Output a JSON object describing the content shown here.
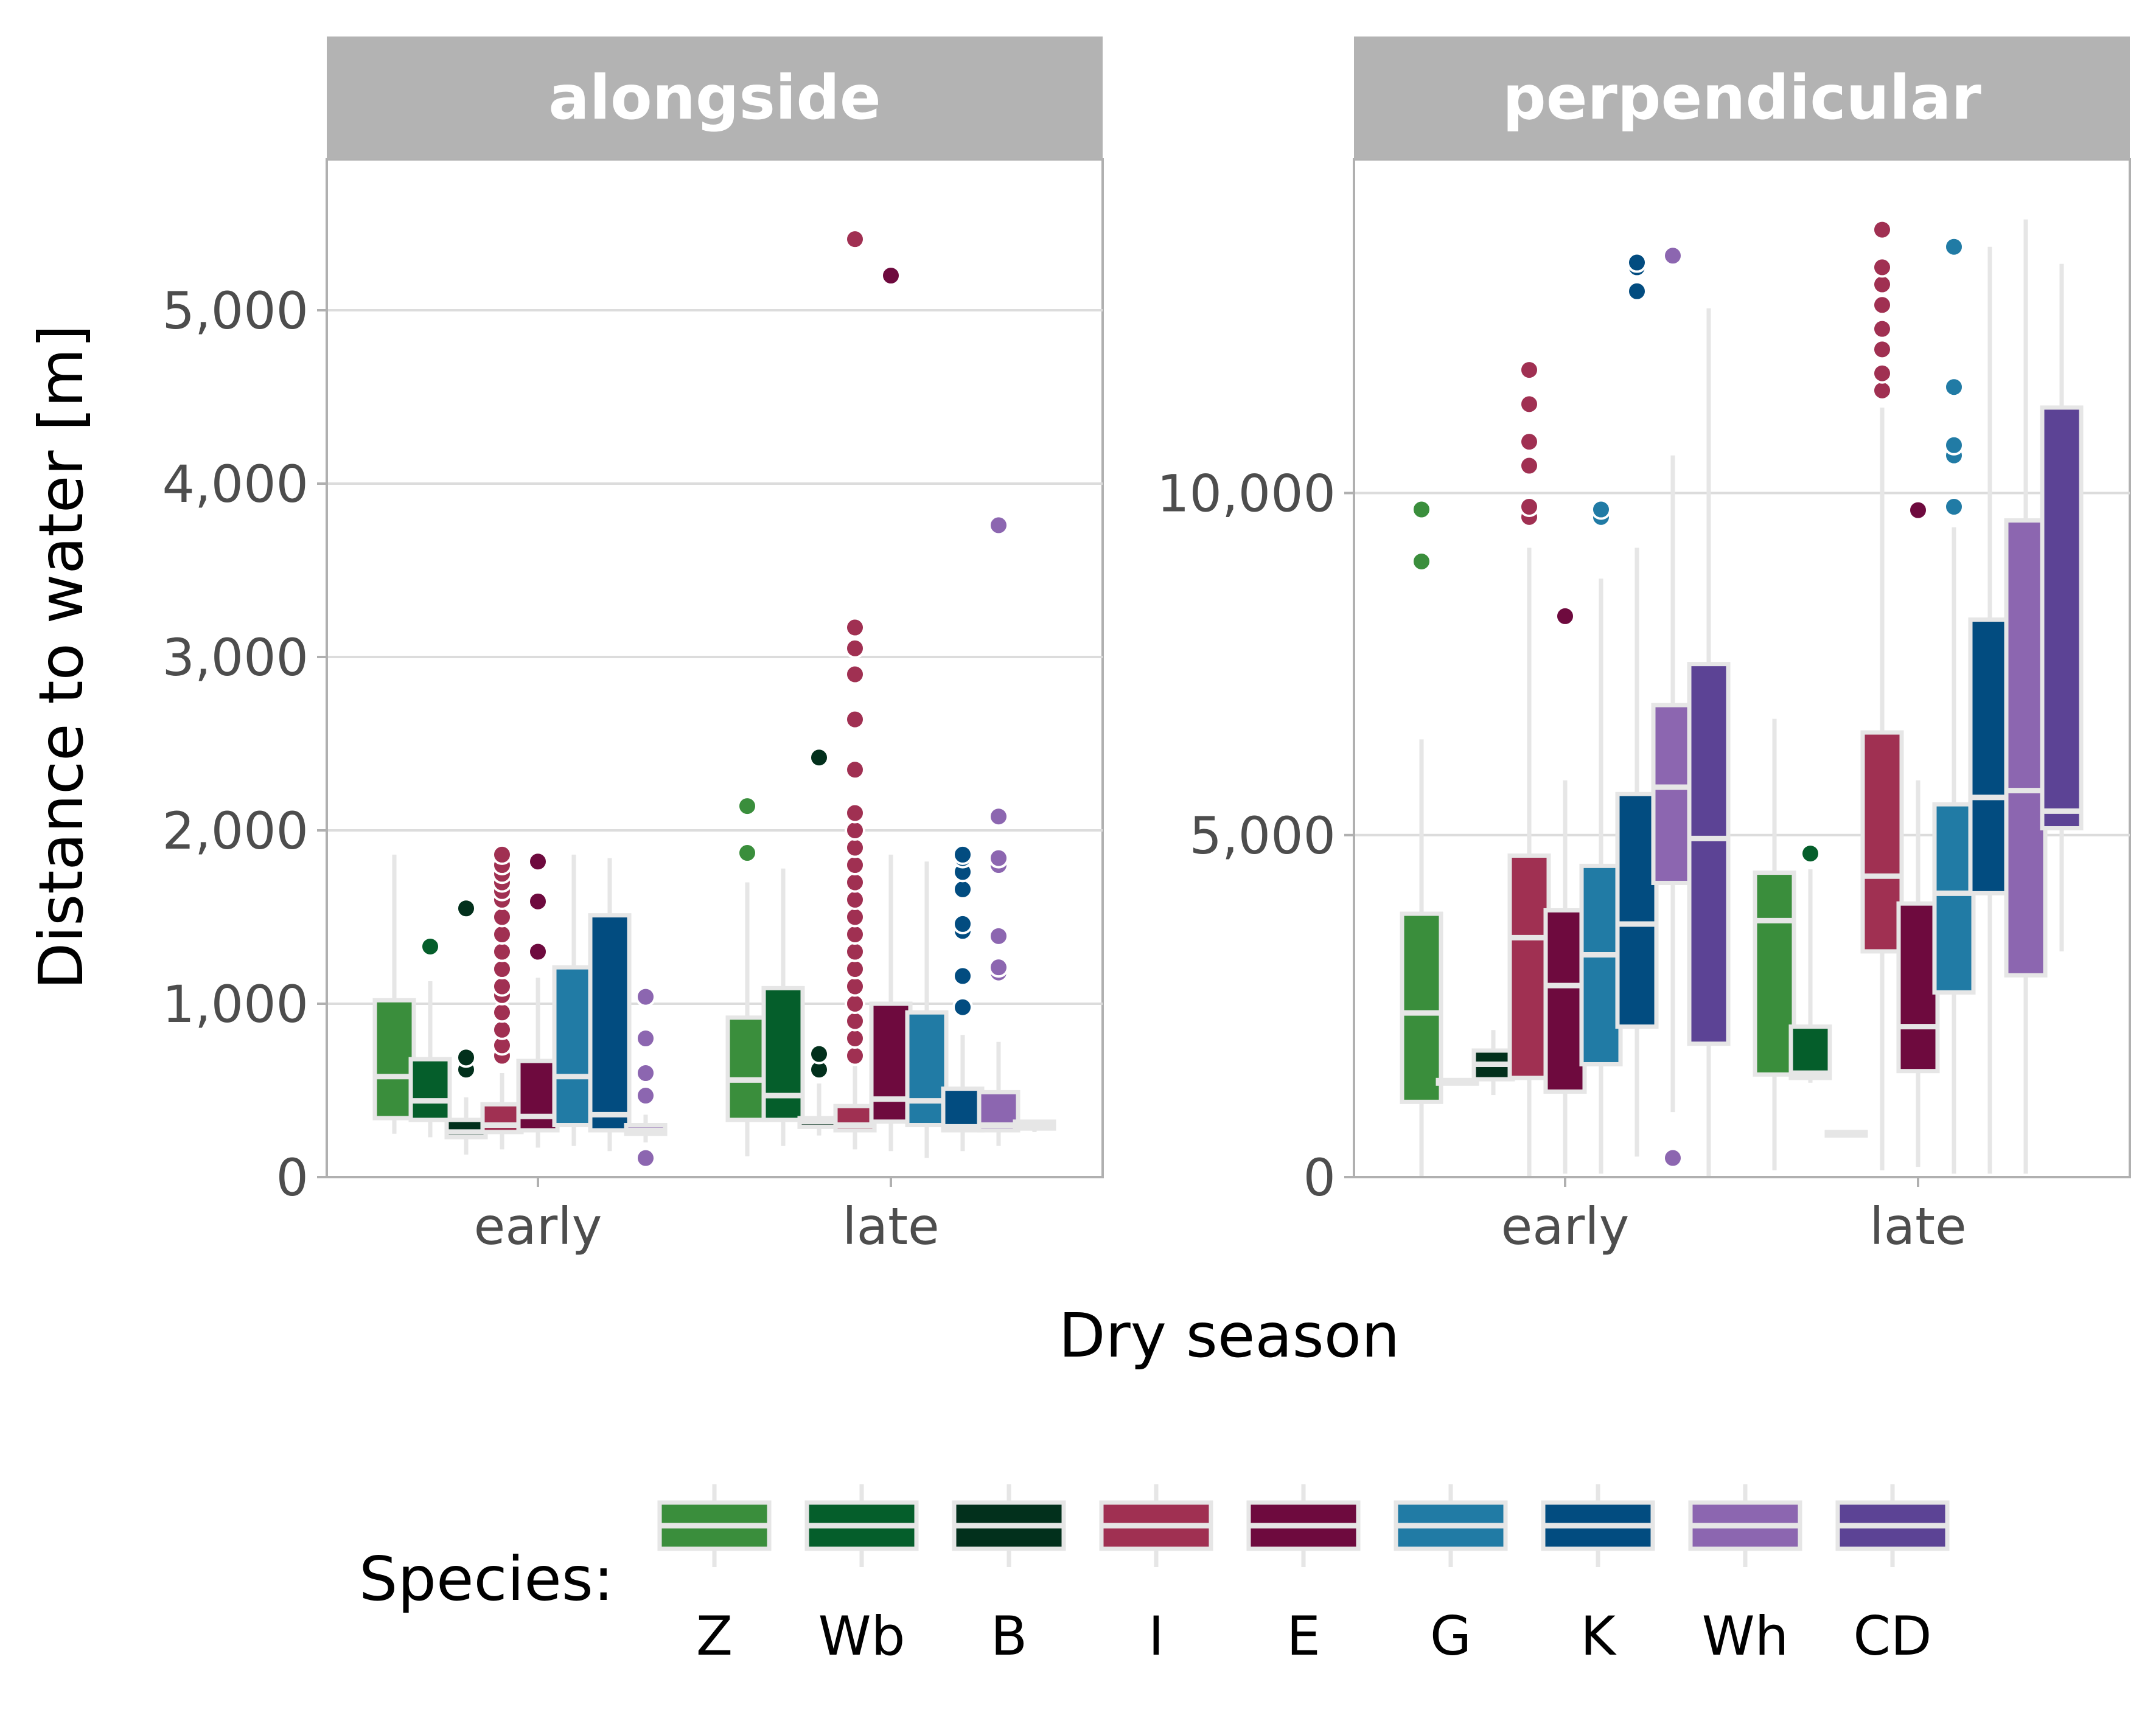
{
  "chart_data": {
    "type": "box",
    "x_axis_label": "Dry season",
    "y_axis_label": "Distance to water [m]",
    "x_categories": [
      "early",
      "late"
    ],
    "legend": {
      "title": "Species:",
      "position": "bottom",
      "items": [
        {
          "label": "Z",
          "color": "#3A8E3C"
        },
        {
          "label": "Wb",
          "color": "#055E2B"
        },
        {
          "label": "B",
          "color": "#02301C"
        },
        {
          "label": "I",
          "color": "#A03052"
        },
        {
          "label": "E",
          "color": "#6E0A3E"
        },
        {
          "label": "G",
          "color": "#217BA5"
        },
        {
          "label": "K",
          "color": "#024C80"
        },
        {
          "label": "Wh",
          "color": "#8C66B0"
        },
        {
          "label": "CD",
          "color": "#5C4395"
        }
      ]
    },
    "grid": true,
    "panels": [
      {
        "title": "alongside",
        "ylim": [
          0,
          5800
        ],
        "yticks": [
          0,
          1000,
          2000,
          3000,
          4000,
          5000
        ],
        "ytick_labels": [
          "0",
          "1,000",
          "2,000",
          "3,000",
          "4,000",
          "5,000"
        ],
        "boxes": [
          {
            "season": "early",
            "species": "Z",
            "whisker_low": 250,
            "q1": 340,
            "median": 580,
            "q3": 1020,
            "whisker_high": 1860,
            "outliers": []
          },
          {
            "season": "early",
            "species": "Wb",
            "whisker_low": 230,
            "q1": 330,
            "median": 440,
            "q3": 680,
            "whisker_high": 1130,
            "outliers": [
              1330
            ]
          },
          {
            "season": "early",
            "species": "B",
            "whisker_low": 130,
            "q1": 230,
            "median": 260,
            "q3": 330,
            "whisker_high": 460,
            "outliers": [
              620,
              690,
              1550
            ]
          },
          {
            "season": "early",
            "species": "I",
            "whisker_low": 160,
            "q1": 260,
            "median": 300,
            "q3": 420,
            "whisker_high": 600,
            "outliers": [
              700,
              760,
              850,
              950,
              1050,
              1100,
              1200,
              1300,
              1400,
              1500,
              1600,
              1650,
              1700,
              1750,
              1800,
              1860
            ]
          },
          {
            "season": "early",
            "species": "E",
            "whisker_low": 170,
            "q1": 270,
            "median": 350,
            "q3": 670,
            "whisker_high": 1150,
            "outliers": [
              1300,
              1590,
              1820
            ]
          },
          {
            "season": "early",
            "species": "G",
            "whisker_low": 180,
            "q1": 300,
            "median": 580,
            "q3": 1210,
            "whisker_high": 1860,
            "outliers": []
          },
          {
            "season": "early",
            "species": "K",
            "whisker_low": 150,
            "q1": 270,
            "median": 360,
            "q3": 1510,
            "whisker_high": 1840,
            "outliers": []
          },
          {
            "season": "early",
            "species": "Wh",
            "whisker_low": 200,
            "q1": 250,
            "median": 270,
            "q3": 300,
            "whisker_high": 360,
            "outliers": [
              110,
              470,
              600,
              800,
              1040
            ]
          },
          {
            "season": "late",
            "species": "Z",
            "whisker_low": 120,
            "q1": 330,
            "median": 560,
            "q3": 920,
            "whisker_high": 1700,
            "outliers": [
              1870,
              2140
            ]
          },
          {
            "season": "late",
            "species": "Wb",
            "whisker_low": 180,
            "q1": 330,
            "median": 470,
            "q3": 1090,
            "whisker_high": 1780,
            "outliers": []
          },
          {
            "season": "late",
            "species": "B",
            "whisker_low": 240,
            "q1": 290,
            "median": 320,
            "q3": 340,
            "whisker_high": 540,
            "outliers": [
              620,
              710,
              2420
            ]
          },
          {
            "season": "late",
            "species": "I",
            "whisker_low": 160,
            "q1": 270,
            "median": 300,
            "q3": 410,
            "whisker_high": 650,
            "outliers": [
              700,
              800,
              900,
              1000,
              1100,
              1200,
              1300,
              1400,
              1500,
              1600,
              1700,
              1800,
              1900,
              2000,
              2100,
              2350,
              2640,
              2900,
              3050,
              3170,
              5410
            ]
          },
          {
            "season": "late",
            "species": "E",
            "whisker_low": 150,
            "q1": 320,
            "median": 450,
            "q3": 1000,
            "whisker_high": 1860,
            "outliers": [
              5200
            ]
          },
          {
            "season": "late",
            "species": "G",
            "whisker_low": 110,
            "q1": 300,
            "median": 440,
            "q3": 950,
            "whisker_high": 1820,
            "outliers": []
          },
          {
            "season": "late",
            "species": "K",
            "whisker_low": 150,
            "q1": 270,
            "median": 290,
            "q3": 510,
            "whisker_high": 820,
            "outliers": [
              980,
              1160,
              1420,
              1460,
              1660,
              1760,
              1840,
              1860
            ]
          },
          {
            "season": "late",
            "species": "Wh",
            "whisker_low": 180,
            "q1": 270,
            "median": 300,
            "q3": 490,
            "whisker_high": 780,
            "outliers": [
              1180,
              1210,
              1390,
              1800,
              1840,
              2080,
              3760
            ]
          },
          {
            "season": "late",
            "species": "CD",
            "whisker_low": 260,
            "q1": 280,
            "median": 300,
            "q3": 320,
            "whisker_high": 330,
            "outliers": []
          }
        ]
      },
      {
        "title": "perpendicular",
        "ylim": [
          0,
          14700
        ],
        "yticks": [
          0,
          5000,
          10000
        ],
        "ytick_labels": [
          "0",
          "5,000",
          "10,000"
        ],
        "boxes": [
          {
            "season": "early",
            "species": "Z",
            "whisker_low": 0,
            "q1": 1100,
            "median": 2400,
            "q3": 3850,
            "whisker_high": 6400,
            "outliers": [
              9000,
              9760
            ]
          },
          {
            "season": "early",
            "species": "Wb",
            "whisker_low": 1350,
            "q1": 1370,
            "median": 1390,
            "q3": 1420,
            "whisker_high": 1450,
            "outliers": []
          },
          {
            "season": "early",
            "species": "B",
            "whisker_low": 1200,
            "q1": 1430,
            "median": 1650,
            "q3": 1850,
            "whisker_high": 2150,
            "outliers": []
          },
          {
            "season": "early",
            "species": "I",
            "whisker_low": 0,
            "q1": 1450,
            "median": 3500,
            "q3": 4700,
            "whisker_high": 9200,
            "outliers": [
              9650,
              9800,
              10400,
              10750,
              11300,
              11800
            ]
          },
          {
            "season": "early",
            "species": "E",
            "whisker_low": 50,
            "q1": 1250,
            "median": 2800,
            "q3": 3900,
            "whisker_high": 5800,
            "outliers": [
              8200
            ]
          },
          {
            "season": "early",
            "species": "G",
            "whisker_low": 50,
            "q1": 1650,
            "median": 3250,
            "q3": 4550,
            "whisker_high": 8750,
            "outliers": [
              9650,
              9760
            ]
          },
          {
            "season": "early",
            "species": "K",
            "whisker_low": 300,
            "q1": 2200,
            "median": 3700,
            "q3": 5600,
            "whisker_high": 9200,
            "outliers": [
              12950,
              13300,
              13370
            ]
          },
          {
            "season": "early",
            "species": "Wh",
            "whisker_low": 950,
            "q1": 4300,
            "median": 5700,
            "q3": 6900,
            "whisker_high": 10550,
            "outliers": [
              280,
              13470
            ]
          },
          {
            "season": "early",
            "species": "CD",
            "whisker_low": 0,
            "q1": 1950,
            "median": 4950,
            "q3": 7500,
            "whisker_high": 12700,
            "outliers": []
          },
          {
            "season": "late",
            "species": "Z",
            "whisker_low": 100,
            "q1": 1500,
            "median": 3750,
            "q3": 4450,
            "whisker_high": 6700,
            "outliers": []
          },
          {
            "season": "late",
            "species": "Wb",
            "whisker_low": 1380,
            "q1": 1450,
            "median": 1520,
            "q3": 2200,
            "whisker_high": 4500,
            "outliers": [
              4730
            ]
          },
          {
            "season": "late",
            "species": "B",
            "whisker_low": 610,
            "q1": 620,
            "median": 640,
            "q3": 660,
            "whisker_high": 690,
            "outliers": []
          },
          {
            "season": "late",
            "species": "I",
            "whisker_low": 100,
            "q1": 3300,
            "median": 4400,
            "q3": 6500,
            "whisker_high": 11250,
            "outliers": [
              11500,
              11750,
              12100,
              12400,
              12750,
              13050,
              13300,
              13850
            ]
          },
          {
            "season": "late",
            "species": "E",
            "whisker_low": 150,
            "q1": 1550,
            "median": 2200,
            "q3": 4000,
            "whisker_high": 5800,
            "outliers": [
              9750
            ]
          },
          {
            "season": "late",
            "species": "G",
            "whisker_low": 50,
            "q1": 2700,
            "median": 4150,
            "q3": 5450,
            "whisker_high": 9500,
            "outliers": [
              9800,
              10550,
              10700,
              11550,
              13600
            ]
          },
          {
            "season": "late",
            "species": "K",
            "whisker_low": 50,
            "q1": 4150,
            "median": 5550,
            "q3": 8150,
            "whisker_high": 13600,
            "outliers": []
          },
          {
            "season": "late",
            "species": "Wh",
            "whisker_low": 50,
            "q1": 2950,
            "median": 5650,
            "q3": 9600,
            "whisker_high": 14000,
            "outliers": []
          },
          {
            "season": "late",
            "species": "CD",
            "whisker_low": 3300,
            "q1": 5100,
            "median": 5350,
            "q3": 11250,
            "whisker_high": 13350,
            "outliers": []
          }
        ]
      }
    ]
  }
}
